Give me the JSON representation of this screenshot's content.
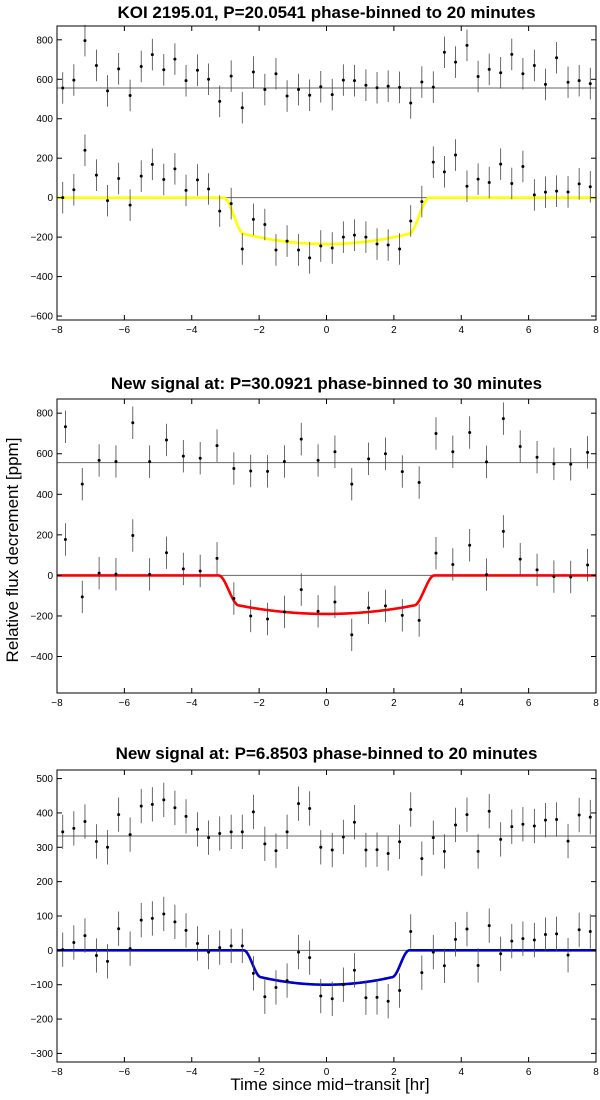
{
  "figure": {
    "ylabel": "Relative flux decrement [ppm]",
    "xlabel": "Time since mid−transit [hr]"
  },
  "chart_data": [
    {
      "type": "scatter",
      "title": "KOI 2195.01, P=20.0541 phase-binned to 20 minutes",
      "xlim": [
        -8,
        8
      ],
      "ylim": [
        -620,
        870
      ],
      "xticks": [
        -8,
        -6,
        -4,
        -2,
        0,
        2,
        4,
        6,
        8
      ],
      "yticks": [
        -600,
        -400,
        -200,
        0,
        200,
        400,
        600,
        800
      ],
      "offset": 556,
      "model_color": "#ffff00",
      "model": {
        "depth": 235,
        "half_duration": 3.05,
        "ingress": 0.6
      },
      "errorbar": 80,
      "series": [
        {
          "x": [
            -7.83,
            -7.5,
            -7.17,
            -6.83,
            -6.5,
            -6.17,
            -5.83,
            -5.5,
            -5.17,
            -4.83,
            -4.5,
            -4.17,
            -3.83,
            -3.5,
            -3.17,
            -2.83,
            -2.5,
            -2.17,
            -1.83,
            -1.5,
            -1.17,
            -0.83,
            -0.5,
            -0.17,
            0.17,
            0.5,
            0.83,
            1.17,
            1.5,
            1.83,
            2.17,
            2.5,
            2.83,
            3.17,
            3.5,
            3.83,
            4.17,
            4.5,
            4.83,
            5.17,
            5.5,
            5.83,
            6.17,
            6.5,
            6.83,
            7.17,
            7.5,
            7.83
          ],
          "y": [
            556,
            596,
            796,
            670,
            541,
            653,
            518,
            665,
            725,
            648,
            702,
            593,
            646,
            600,
            488,
            616,
            456,
            637,
            548,
            628,
            515,
            548,
            519,
            562,
            522,
            596,
            593,
            570,
            557,
            565,
            559,
            480,
            586,
            560,
            737,
            687,
            772,
            614,
            650,
            633,
            726,
            628,
            670,
            574,
            709,
            585,
            593,
            578
          ]
        },
        {
          "x": [
            -7.83,
            -7.5,
            -7.17,
            -6.83,
            -6.5,
            -6.17,
            -5.83,
            -5.5,
            -5.17,
            -4.83,
            -4.5,
            -4.17,
            -3.83,
            -3.5,
            -3.17,
            -2.83,
            -2.5,
            -2.17,
            -1.83,
            -1.5,
            -1.17,
            -0.83,
            -0.5,
            -0.17,
            0.17,
            0.5,
            0.83,
            1.17,
            1.5,
            1.83,
            2.17,
            2.5,
            2.83,
            3.17,
            3.5,
            3.83,
            4.17,
            4.5,
            4.83,
            5.17,
            5.5,
            5.83,
            6.17,
            6.5,
            6.83,
            7.17,
            7.5,
            7.83
          ],
          "y": [
            0,
            40,
            240,
            114,
            -15,
            97,
            -38,
            109,
            169,
            92,
            146,
            37,
            90,
            44,
            -68,
            -30,
            -260,
            -110,
            -136,
            -265,
            -220,
            -265,
            -305,
            -245,
            -255,
            -200,
            -190,
            -200,
            -235,
            -240,
            -260,
            -118,
            -20,
            180,
            131,
            216,
            58,
            94,
            77,
            170,
            72,
            158,
            14,
            28,
            33,
            29,
            70,
            55
          ]
        }
      ]
    },
    {
      "type": "scatter",
      "title": "New signal at: P=30.0921 phase-binned to 30 minutes",
      "xlim": [
        -8,
        8
      ],
      "ylim": [
        -580,
        870
      ],
      "xticks": [
        -8,
        -6,
        -4,
        -2,
        0,
        2,
        4,
        6,
        8
      ],
      "yticks": [
        -400,
        -200,
        0,
        200,
        400,
        600,
        800
      ],
      "offset": 556,
      "model_color": "#ff0000",
      "model": {
        "depth": 190,
        "half_duration": 3.2,
        "ingress": 0.6
      },
      "errorbar": 80,
      "series": [
        {
          "x": [
            -7.75,
            -7.25,
            -6.75,
            -6.25,
            -5.75,
            -5.25,
            -4.75,
            -4.25,
            -3.75,
            -3.25,
            -2.75,
            -2.25,
            -1.75,
            -1.25,
            -0.75,
            -0.25,
            0.25,
            0.75,
            1.25,
            1.75,
            2.25,
            2.75,
            3.25,
            3.75,
            4.25,
            4.75,
            5.25,
            5.75,
            6.25,
            6.75,
            7.25,
            7.75
          ],
          "y": [
            733,
            450,
            567,
            562,
            753,
            561,
            668,
            588,
            578,
            640,
            527,
            515,
            513,
            562,
            672,
            567,
            610,
            450,
            575,
            600,
            512,
            458,
            700,
            610,
            705,
            560,
            773,
            636,
            583,
            550,
            548,
            607
          ]
        },
        {
          "x": [
            -7.75,
            -7.25,
            -6.75,
            -6.25,
            -5.75,
            -5.25,
            -4.75,
            -4.25,
            -3.75,
            -3.25,
            -2.75,
            -2.25,
            -1.75,
            -1.25,
            -0.75,
            -0.25,
            0.25,
            0.75,
            1.25,
            1.75,
            2.25,
            2.75,
            3.25,
            3.75,
            4.25,
            4.75,
            5.25,
            5.75,
            6.25,
            6.75,
            7.25,
            7.75
          ],
          "y": [
            177,
            -106,
            11,
            6,
            197,
            5,
            112,
            32,
            22,
            84,
            -114,
            -200,
            -215,
            -180,
            -70,
            -177,
            -131,
            -293,
            -160,
            -150,
            -197,
            -222,
            110,
            54,
            149,
            4,
            217,
            80,
            27,
            -6,
            -8,
            51
          ]
        }
      ]
    },
    {
      "type": "scatter",
      "title": "New signal at: P=6.8503 phase-binned to 20 minutes",
      "xlim": [
        -8,
        8
      ],
      "ylim": [
        -325,
        525
      ],
      "xticks": [
        -8,
        -6,
        -4,
        -2,
        0,
        2,
        4,
        6,
        8
      ],
      "yticks": [
        -300,
        -200,
        -100,
        0,
        100,
        200,
        300,
        400,
        500
      ],
      "offset": 333,
      "model_color": "#0000cc",
      "model": {
        "depth": 100,
        "half_duration": 2.45,
        "ingress": 0.5
      },
      "errorbar": 50,
      "series": [
        {
          "x": [
            -7.83,
            -7.5,
            -7.17,
            -6.83,
            -6.5,
            -6.17,
            -5.83,
            -5.5,
            -5.17,
            -4.83,
            -4.5,
            -4.17,
            -3.83,
            -3.5,
            -3.17,
            -2.83,
            -2.5,
            -2.17,
            -1.83,
            -1.5,
            -1.17,
            -0.83,
            -0.5,
            -0.17,
            0.17,
            0.5,
            0.83,
            1.17,
            1.5,
            1.83,
            2.17,
            2.5,
            2.83,
            3.17,
            3.5,
            3.83,
            4.17,
            4.5,
            4.83,
            5.17,
            5.5,
            5.83,
            6.17,
            6.5,
            6.83,
            7.17,
            7.5,
            7.83
          ],
          "y": [
            345,
            355,
            375,
            317,
            300,
            395,
            337,
            420,
            425,
            438,
            415,
            390,
            352,
            328,
            340,
            345,
            345,
            403,
            310,
            290,
            345,
            427,
            413,
            300,
            292,
            330,
            373,
            292,
            293,
            282,
            316,
            410,
            267,
            328,
            288,
            365,
            395,
            288,
            405,
            323,
            360,
            367,
            362,
            379,
            381,
            318,
            394,
            388
          ]
        },
        {
          "x": [
            -7.83,
            -7.5,
            -7.17,
            -6.83,
            -6.5,
            -6.17,
            -5.83,
            -5.5,
            -5.17,
            -4.83,
            -4.5,
            -4.17,
            -3.83,
            -3.5,
            -3.17,
            -2.83,
            -2.5,
            -2.17,
            -1.83,
            -1.5,
            -1.17,
            -0.83,
            -0.5,
            -0.17,
            0.17,
            0.5,
            0.83,
            1.17,
            1.5,
            1.83,
            2.17,
            2.5,
            2.83,
            3.17,
            3.5,
            3.83,
            4.17,
            4.5,
            4.83,
            5.17,
            5.5,
            5.83,
            6.17,
            6.5,
            6.83,
            7.17,
            7.5,
            7.83
          ],
          "y": [
            2,
            23,
            43,
            -15,
            -32,
            63,
            5,
            88,
            93,
            106,
            83,
            58,
            20,
            -5,
            8,
            13,
            13,
            -67,
            -135,
            -108,
            -88,
            -5,
            -21,
            -133,
            -141,
            -100,
            -58,
            -138,
            -137,
            -148,
            -117,
            55,
            -65,
            -5,
            -45,
            32,
            62,
            -44,
            72,
            -10,
            27,
            34,
            30,
            46,
            48,
            -14,
            60,
            55
          ]
        }
      ]
    }
  ]
}
